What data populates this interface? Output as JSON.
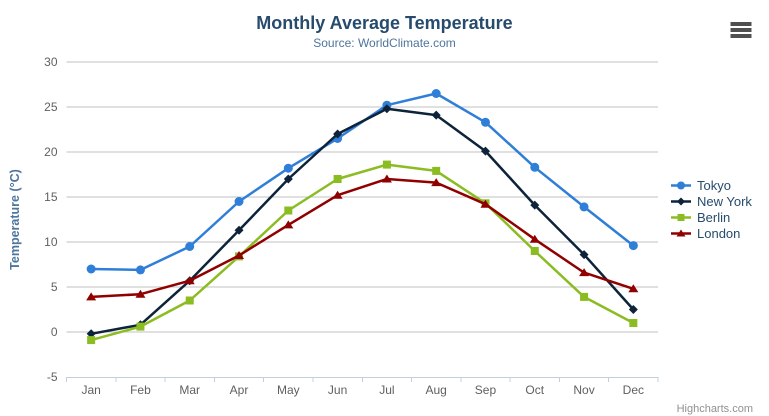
{
  "header": {
    "title": "Monthly Average Temperature",
    "subtitle": "Source: WorldClimate.com"
  },
  "credits": "Highcharts.com",
  "menu_icon": "hamburger-icon",
  "colors": {
    "title": "#274b6d",
    "subtitle": "#4d759e",
    "axis_title": "#4d759e",
    "tick_label": "#606060",
    "gridline": "#c0c0c0",
    "axis_line": "#c0d0e0",
    "legend_text": "#274b6d",
    "credits_text": "#909090",
    "menu_icon": "#505050"
  },
  "chart_data": {
    "type": "line",
    "title": "Monthly Average Temperature",
    "subtitle": "Source: WorldClimate.com",
    "categories": [
      "Jan",
      "Feb",
      "Mar",
      "Apr",
      "May",
      "Jun",
      "Jul",
      "Aug",
      "Sep",
      "Oct",
      "Nov",
      "Dec"
    ],
    "series": [
      {
        "name": "Tokyo",
        "color": "#2f7ed8",
        "marker": "circle",
        "values": [
          7.0,
          6.9,
          9.5,
          14.5,
          18.2,
          21.5,
          25.2,
          26.5,
          23.3,
          18.3,
          13.9,
          9.6
        ]
      },
      {
        "name": "New York",
        "color": "#0d233a",
        "marker": "diamond",
        "values": [
          -0.2,
          0.8,
          5.7,
          11.3,
          17.0,
          22.0,
          24.8,
          24.1,
          20.1,
          14.1,
          8.6,
          2.5
        ]
      },
      {
        "name": "Berlin",
        "color": "#8bbc21",
        "marker": "square",
        "values": [
          -0.9,
          0.6,
          3.5,
          8.4,
          13.5,
          17.0,
          18.6,
          17.9,
          14.3,
          9.0,
          3.9,
          1.0
        ]
      },
      {
        "name": "London",
        "color": "#910000",
        "marker": "triangle",
        "values": [
          3.9,
          4.2,
          5.7,
          8.5,
          11.9,
          15.2,
          17.0,
          16.6,
          14.2,
          10.3,
          6.6,
          4.8
        ]
      }
    ],
    "xlabel": "",
    "ylabel": "Temperature (°C)",
    "ylim": [
      -5,
      30
    ],
    "yticks": [
      -5,
      0,
      5,
      10,
      15,
      20,
      25,
      30
    ],
    "grid": true,
    "legend_position": "right"
  }
}
